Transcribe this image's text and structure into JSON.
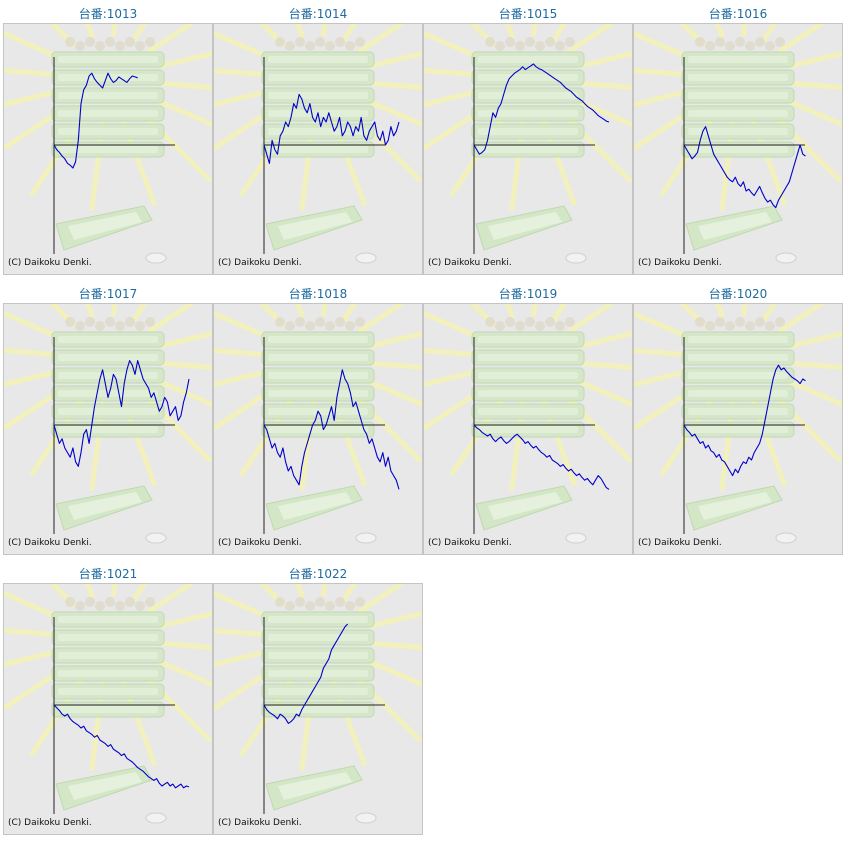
{
  "copyright_text": "(C) Daikoku Denki.",
  "colors": {
    "title": "#1f6b9f",
    "line": "#0000cc",
    "axis": "#222222",
    "background": "#e8e8e8",
    "frame": "#c4c4c4"
  },
  "chart_data": [
    {
      "type": "line",
      "title": "台番:1013",
      "x_range": [
        0,
        100
      ],
      "y_range": [
        -100,
        100
      ],
      "x": [
        0,
        2,
        4,
        6,
        8,
        10,
        12,
        14,
        16,
        18,
        20,
        22,
        24,
        26,
        28,
        30,
        32,
        34,
        36,
        38,
        40,
        42,
        44,
        46,
        48,
        50,
        52,
        54,
        56,
        58,
        60,
        62
      ],
      "y": [
        0,
        -5,
        -8,
        -12,
        -15,
        -20,
        -22,
        -25,
        -18,
        5,
        45,
        60,
        65,
        75,
        78,
        72,
        68,
        65,
        62,
        70,
        78,
        72,
        68,
        70,
        74,
        72,
        70,
        68,
        72,
        75,
        74,
        73
      ]
    },
    {
      "type": "line",
      "title": "台番:1014",
      "x_range": [
        0,
        100
      ],
      "y_range": [
        -100,
        100
      ],
      "x": [
        0,
        2,
        4,
        6,
        8,
        10,
        12,
        14,
        16,
        18,
        20,
        22,
        24,
        26,
        28,
        30,
        32,
        34,
        36,
        38,
        40,
        42,
        44,
        46,
        48,
        50,
        52,
        54,
        56,
        58,
        60,
        62,
        64,
        66,
        68,
        70,
        72,
        74,
        76,
        78,
        80,
        82,
        84,
        86,
        88,
        90,
        92,
        94,
        96,
        98,
        100
      ],
      "y": [
        0,
        -10,
        -20,
        5,
        -5,
        -10,
        10,
        15,
        25,
        20,
        30,
        45,
        40,
        55,
        50,
        40,
        35,
        45,
        30,
        25,
        35,
        20,
        30,
        25,
        35,
        25,
        15,
        20,
        30,
        10,
        15,
        25,
        20,
        10,
        20,
        15,
        30,
        10,
        5,
        15,
        20,
        25,
        10,
        5,
        15,
        0,
        5,
        20,
        10,
        15,
        25
      ]
    },
    {
      "type": "line",
      "title": "台番:1015",
      "x_range": [
        0,
        100
      ],
      "y_range": [
        -100,
        100
      ],
      "x": [
        0,
        2,
        4,
        6,
        8,
        10,
        12,
        14,
        16,
        18,
        20,
        22,
        24,
        26,
        28,
        30,
        32,
        34,
        36,
        38,
        40,
        42,
        44,
        46,
        48,
        50,
        52,
        54,
        56,
        58,
        60,
        62,
        64,
        66,
        68,
        70,
        72,
        74,
        76,
        78,
        80,
        82,
        84,
        86,
        88,
        90,
        92,
        94,
        96,
        98,
        100
      ],
      "y": [
        0,
        -5,
        -10,
        -8,
        -5,
        5,
        20,
        35,
        30,
        40,
        45,
        55,
        65,
        72,
        75,
        78,
        80,
        82,
        85,
        82,
        84,
        86,
        88,
        85,
        83,
        82,
        80,
        78,
        76,
        74,
        72,
        70,
        68,
        65,
        62,
        60,
        58,
        55,
        52,
        50,
        48,
        45,
        42,
        40,
        38,
        35,
        32,
        30,
        28,
        26,
        25
      ]
    },
    {
      "type": "line",
      "title": "台番:1016",
      "x_range": [
        0,
        100
      ],
      "y_range": [
        -100,
        100
      ],
      "x": [
        0,
        2,
        4,
        6,
        8,
        10,
        12,
        14,
        16,
        18,
        20,
        22,
        24,
        26,
        28,
        30,
        32,
        34,
        36,
        38,
        40,
        42,
        44,
        46,
        48,
        50,
        52,
        54,
        56,
        58,
        60,
        62,
        64,
        66,
        68,
        70,
        72,
        74,
        76,
        78,
        80,
        82,
        84,
        86,
        88,
        90
      ],
      "y": [
        0,
        -5,
        -10,
        -15,
        -12,
        -8,
        5,
        15,
        20,
        10,
        0,
        -10,
        -15,
        -20,
        -25,
        -30,
        -35,
        -38,
        -40,
        -35,
        -42,
        -45,
        -40,
        -50,
        -48,
        -52,
        -55,
        -50,
        -45,
        -52,
        -58,
        -62,
        -60,
        -65,
        -68,
        -60,
        -55,
        -50,
        -45,
        -40,
        -30,
        -20,
        -10,
        0,
        -10,
        -12
      ]
    },
    {
      "type": "line",
      "title": "台番:1017",
      "x_range": [
        0,
        100
      ],
      "y_range": [
        -100,
        100
      ],
      "x": [
        0,
        2,
        4,
        6,
        8,
        10,
        12,
        14,
        16,
        18,
        20,
        22,
        24,
        26,
        28,
        30,
        32,
        34,
        36,
        38,
        40,
        42,
        44,
        46,
        48,
        50,
        52,
        54,
        56,
        58,
        60,
        62,
        64,
        66,
        68,
        70,
        72,
        74,
        76,
        78,
        80,
        82,
        84,
        86,
        88,
        90,
        92,
        94,
        96,
        98,
        100
      ],
      "y": [
        0,
        -10,
        -20,
        -15,
        -25,
        -30,
        -35,
        -25,
        -40,
        -45,
        -30,
        -10,
        -5,
        -20,
        0,
        20,
        35,
        50,
        60,
        45,
        30,
        40,
        55,
        50,
        35,
        20,
        45,
        60,
        70,
        65,
        55,
        70,
        60,
        50,
        45,
        40,
        30,
        35,
        25,
        15,
        20,
        30,
        25,
        10,
        15,
        20,
        5,
        10,
        25,
        35,
        50
      ]
    },
    {
      "type": "line",
      "title": "台番:1018",
      "x_range": [
        0,
        100
      ],
      "y_range": [
        -100,
        100
      ],
      "x": [
        0,
        2,
        4,
        6,
        8,
        10,
        12,
        14,
        16,
        18,
        20,
        22,
        24,
        26,
        28,
        30,
        32,
        34,
        36,
        38,
        40,
        42,
        44,
        46,
        48,
        50,
        52,
        54,
        56,
        58,
        60,
        62,
        64,
        66,
        68,
        70,
        72,
        74,
        76,
        78,
        80,
        82,
        84,
        86,
        88,
        90,
        92,
        94,
        96,
        98,
        100
      ],
      "y": [
        0,
        -5,
        -15,
        -25,
        -20,
        -30,
        -35,
        -25,
        -40,
        -50,
        -45,
        -55,
        -60,
        -65,
        -45,
        -30,
        -20,
        -10,
        0,
        5,
        15,
        10,
        -5,
        0,
        10,
        20,
        5,
        30,
        45,
        60,
        50,
        45,
        35,
        20,
        25,
        15,
        5,
        -5,
        -10,
        -20,
        -15,
        -25,
        -35,
        -40,
        -30,
        -45,
        -35,
        -50,
        -55,
        -60,
        -70
      ]
    },
    {
      "type": "line",
      "title": "台番:1019",
      "x_range": [
        0,
        100
      ],
      "y_range": [
        -100,
        100
      ],
      "x": [
        0,
        2,
        4,
        6,
        8,
        10,
        12,
        14,
        16,
        18,
        20,
        22,
        24,
        26,
        28,
        30,
        32,
        34,
        36,
        38,
        40,
        42,
        44,
        46,
        48,
        50,
        52,
        54,
        56,
        58,
        60,
        62,
        64,
        66,
        68,
        70,
        72,
        74,
        76,
        78,
        80,
        82,
        84,
        86,
        88,
        90,
        92,
        94,
        96,
        98,
        100
      ],
      "y": [
        0,
        -3,
        -5,
        -8,
        -10,
        -12,
        -10,
        -15,
        -18,
        -15,
        -13,
        -17,
        -20,
        -18,
        -15,
        -12,
        -10,
        -13,
        -16,
        -20,
        -18,
        -22,
        -25,
        -23,
        -27,
        -30,
        -32,
        -35,
        -33,
        -38,
        -40,
        -42,
        -45,
        -43,
        -47,
        -50,
        -48,
        -52,
        -55,
        -53,
        -57,
        -60,
        -58,
        -62,
        -65,
        -60,
        -55,
        -58,
        -63,
        -68,
        -70
      ]
    },
    {
      "type": "line",
      "title": "台番:1020",
      "x_range": [
        0,
        100
      ],
      "y_range": [
        -100,
        100
      ],
      "x": [
        0,
        2,
        4,
        6,
        8,
        10,
        12,
        14,
        16,
        18,
        20,
        22,
        24,
        26,
        28,
        30,
        32,
        34,
        36,
        38,
        40,
        42,
        44,
        46,
        48,
        50,
        52,
        54,
        56,
        58,
        60,
        62,
        64,
        66,
        68,
        70,
        72,
        74,
        76,
        78,
        80,
        82,
        84,
        86,
        88,
        90
      ],
      "y": [
        0,
        -5,
        -8,
        -12,
        -10,
        -15,
        -20,
        -18,
        -25,
        -22,
        -28,
        -30,
        -35,
        -32,
        -38,
        -40,
        -45,
        -50,
        -55,
        -48,
        -52,
        -45,
        -40,
        -42,
        -35,
        -38,
        -30,
        -25,
        -20,
        -10,
        5,
        20,
        35,
        50,
        60,
        65,
        60,
        62,
        58,
        55,
        52,
        50,
        48,
        45,
        50,
        48
      ]
    },
    {
      "type": "line",
      "title": "台番:1021",
      "x_range": [
        0,
        100
      ],
      "y_range": [
        -100,
        100
      ],
      "x": [
        0,
        2,
        4,
        6,
        8,
        10,
        12,
        14,
        16,
        18,
        20,
        22,
        24,
        26,
        28,
        30,
        32,
        34,
        36,
        38,
        40,
        42,
        44,
        46,
        48,
        50,
        52,
        54,
        56,
        58,
        60,
        62,
        64,
        66,
        68,
        70,
        72,
        74,
        76,
        78,
        80,
        82,
        84,
        86,
        88,
        90,
        92,
        94,
        96,
        98,
        100
      ],
      "y": [
        0,
        -3,
        -6,
        -10,
        -12,
        -10,
        -15,
        -18,
        -20,
        -22,
        -25,
        -23,
        -28,
        -30,
        -32,
        -35,
        -33,
        -38,
        -40,
        -42,
        -45,
        -43,
        -48,
        -50,
        -52,
        -55,
        -53,
        -58,
        -60,
        -62,
        -65,
        -68,
        -70,
        -72,
        -75,
        -78,
        -80,
        -82,
        -80,
        -85,
        -88,
        -86,
        -84,
        -88,
        -86,
        -90,
        -88,
        -86,
        -90,
        -88,
        -89
      ]
    },
    {
      "type": "line",
      "title": "台番:1022",
      "x_range": [
        0,
        100
      ],
      "y_range": [
        -100,
        100
      ],
      "x": [
        0,
        2,
        4,
        6,
        8,
        10,
        12,
        14,
        16,
        18,
        20,
        22,
        24,
        26,
        28,
        30,
        32,
        34,
        36,
        38,
        40,
        42,
        44,
        46,
        48,
        50,
        52,
        54,
        56,
        58,
        60,
        62
      ],
      "y": [
        0,
        -5,
        -8,
        -10,
        -12,
        -15,
        -10,
        -12,
        -15,
        -20,
        -18,
        -15,
        -10,
        -12,
        -5,
        0,
        5,
        10,
        15,
        20,
        25,
        30,
        40,
        45,
        50,
        60,
        65,
        70,
        75,
        80,
        85,
        88
      ]
    }
  ]
}
